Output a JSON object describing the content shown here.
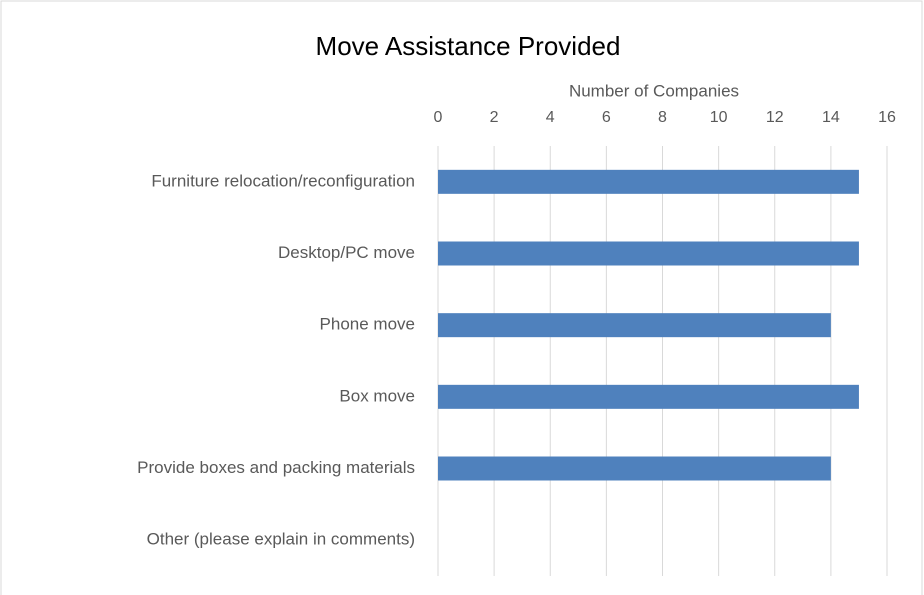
{
  "chart_data": {
    "type": "bar",
    "orientation": "horizontal",
    "title": "Move Assistance Provided",
    "x_label": "Number of Companies",
    "categories": [
      "Furniture relocation/reconfiguration",
      "Desktop/PC move",
      "Phone move",
      "Box move",
      "Provide boxes and packing materials",
      "Other (please explain in comments)"
    ],
    "values": [
      15,
      15,
      14,
      15,
      14,
      0
    ],
    "color": "#4f81bd",
    "xlim": [
      0,
      16
    ],
    "xticks": [
      0,
      2,
      4,
      6,
      8,
      10,
      12,
      14,
      16
    ],
    "grid": true
  }
}
